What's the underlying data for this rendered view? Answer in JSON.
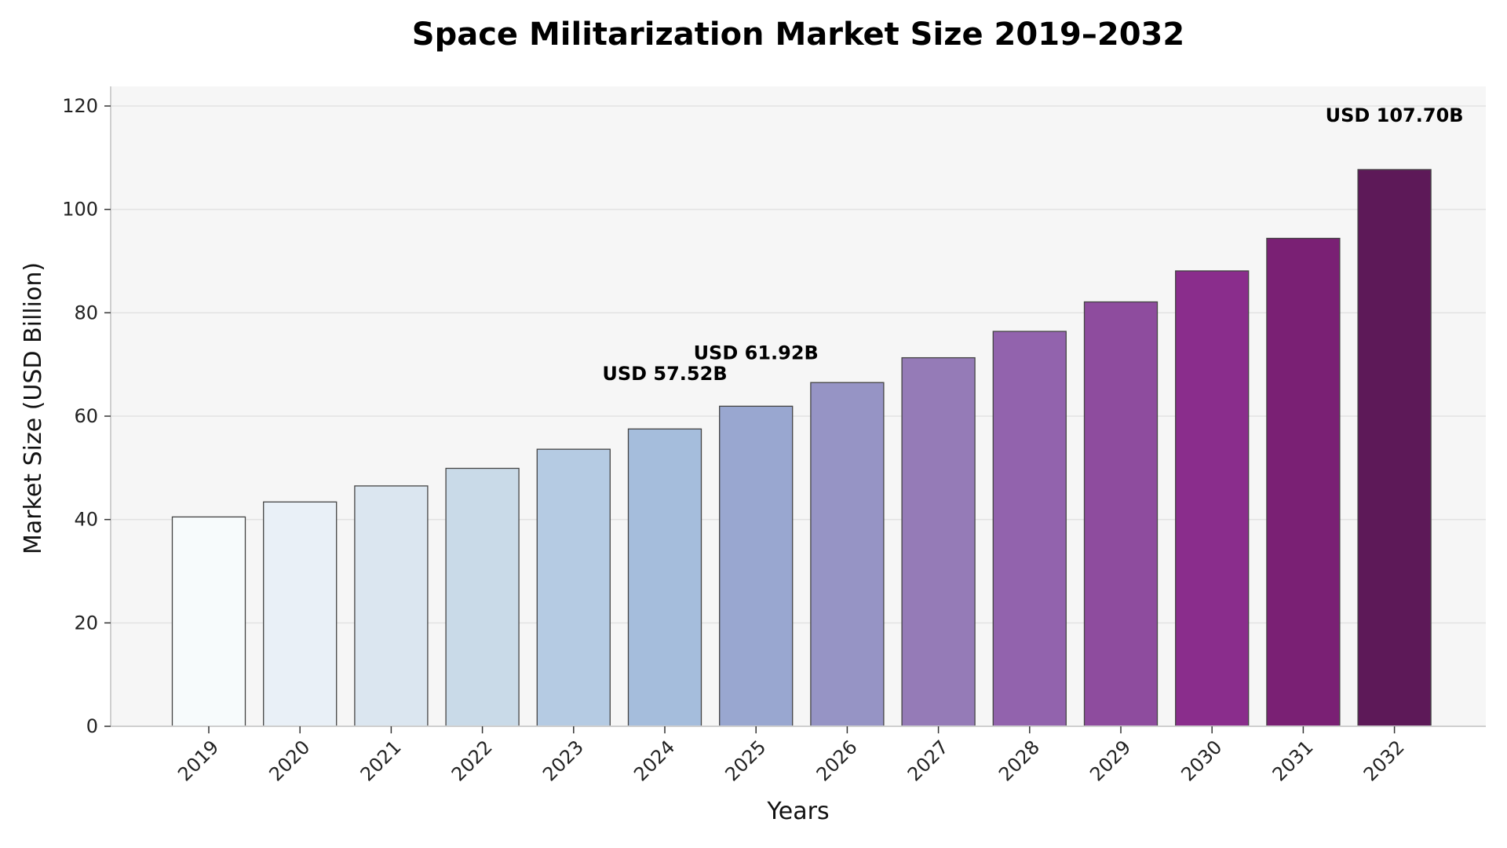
{
  "chart_data": {
    "type": "bar",
    "title": "Space Militarization Market Size 2019–2032",
    "xlabel": "Years",
    "ylabel": "Market Size (USD Billion)",
    "ylim": [
      0,
      123
    ],
    "yticks": [
      0,
      20,
      40,
      60,
      80,
      100,
      120
    ],
    "grid": "horizontal",
    "categories": [
      "2019",
      "2020",
      "2021",
      "2022",
      "2023",
      "2024",
      "2025",
      "2026",
      "2027",
      "2028",
      "2029",
      "2030",
      "2031",
      "2032"
    ],
    "values": [
      40.5,
      43.4,
      46.5,
      49.9,
      53.6,
      57.52,
      61.92,
      66.5,
      71.3,
      76.4,
      82.1,
      88.1,
      94.4,
      107.7
    ],
    "colors": [
      "#f7fbfc",
      "#e9f0f7",
      "#dbe6f0",
      "#c9dae8",
      "#b5cbe3",
      "#a5bddc",
      "#99a7d0",
      "#9694c5",
      "#957bb7",
      "#9263ad",
      "#8e4c9e",
      "#8a2d8c",
      "#7a2074",
      "#5d1958"
    ],
    "annotations": [
      {
        "category": "2024",
        "text": "USD 57.52B"
      },
      {
        "category": "2025",
        "text": "USD 61.92B"
      },
      {
        "category": "2032",
        "text": "USD 107.70B"
      }
    ],
    "plot_background": "#f6f6f6",
    "bar_edge_color": "#444444"
  }
}
